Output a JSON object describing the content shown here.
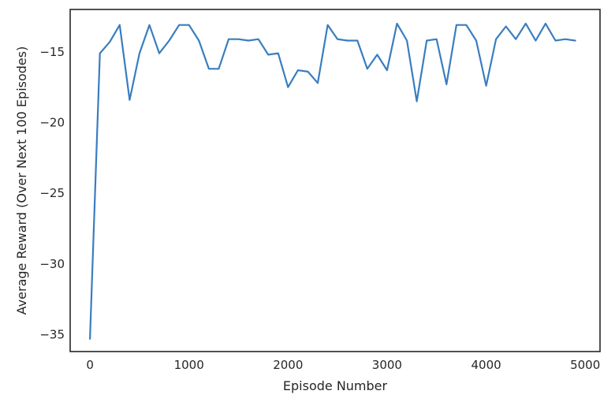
{
  "chart_data": {
    "type": "line",
    "title": "",
    "xlabel": "Episode Number",
    "ylabel": "Average Reward (Over Next 100 Episodes)",
    "xlim": [
      -200,
      5150
    ],
    "ylim": [
      -36.2,
      -12.0
    ],
    "xticks": [
      0,
      1000,
      2000,
      3000,
      4000,
      5000
    ],
    "yticks": [
      -35,
      -30,
      -25,
      -20,
      -15
    ],
    "grid": false,
    "legend": "none",
    "series": [
      {
        "color": "#3a7dbf",
        "x": [
          0,
          100,
          200,
          300,
          400,
          500,
          600,
          700,
          800,
          900,
          1000,
          1100,
          1200,
          1300,
          1400,
          1500,
          1600,
          1700,
          1800,
          1900,
          2000,
          2100,
          2200,
          2300,
          2400,
          2500,
          2600,
          2700,
          2800,
          2900,
          3000,
          3100,
          3200,
          3300,
          3400,
          3500,
          3600,
          3700,
          3800,
          3900,
          4000,
          4100,
          4200,
          4300,
          4400,
          4500,
          4600,
          4700,
          4800,
          4900
        ],
        "values": [
          -35.3,
          -15.1,
          -14.3,
          -13.1,
          -18.4,
          -15.1,
          -13.1,
          -15.1,
          -14.2,
          -13.1,
          -13.1,
          -14.2,
          -16.2,
          -16.2,
          -14.1,
          -14.1,
          -14.2,
          -14.1,
          -15.2,
          -15.1,
          -17.5,
          -16.3,
          -16.4,
          -17.2,
          -13.1,
          -14.1,
          -14.2,
          -14.2,
          -16.2,
          -15.2,
          -16.3,
          -13.0,
          -14.2,
          -18.5,
          -14.2,
          -14.1,
          -17.3,
          -13.1,
          -13.1,
          -14.2,
          -17.4,
          -14.1,
          -13.2,
          -14.1,
          -13.0,
          -14.2,
          -13.0,
          -14.2,
          -14.1,
          -14.2
        ]
      }
    ]
  }
}
